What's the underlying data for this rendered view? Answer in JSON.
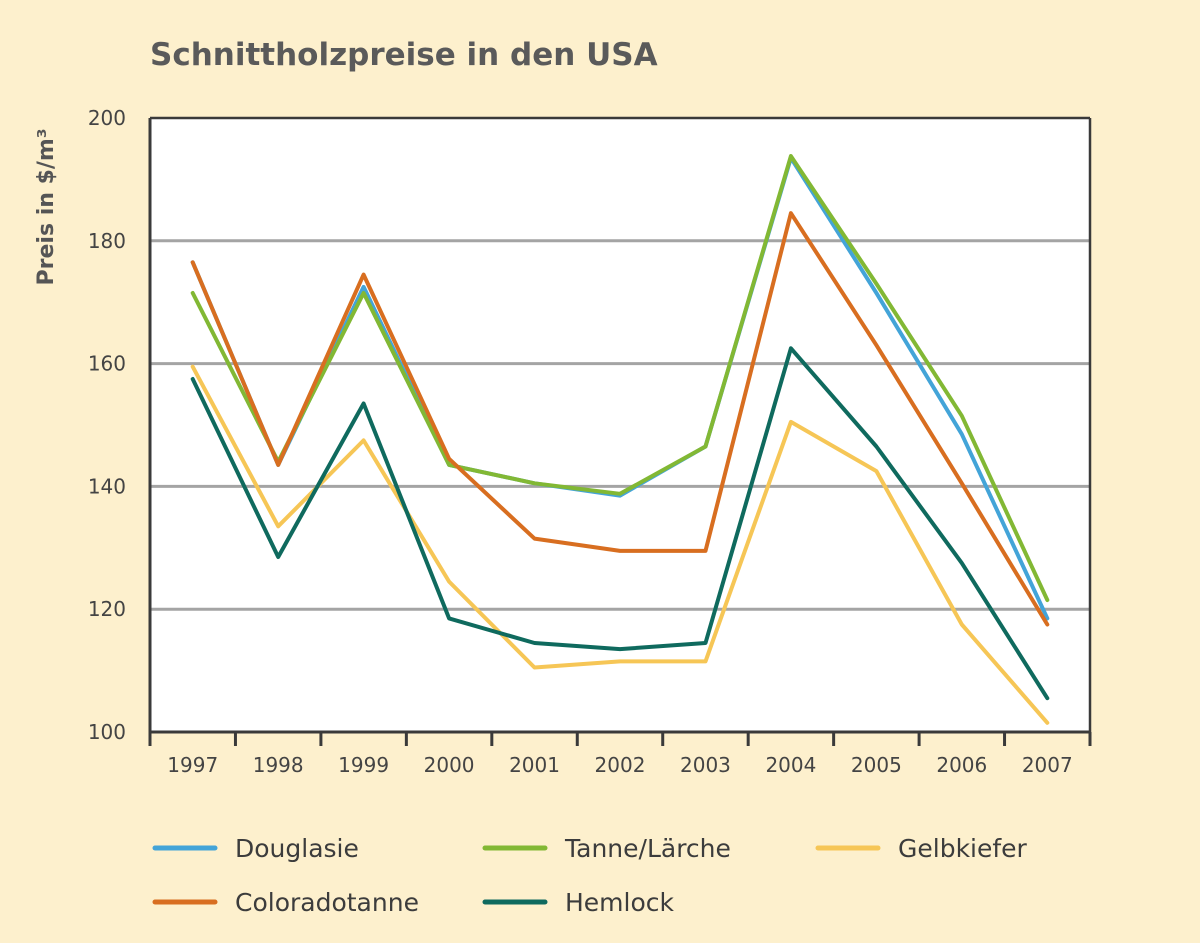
{
  "chart_data": {
    "type": "line",
    "title": "Schnittholzpreise in den USA",
    "xlabel": "",
    "ylabel": "Preis in $/m³",
    "ylim": [
      100,
      200
    ],
    "yticks": [
      100,
      120,
      140,
      160,
      180,
      200
    ],
    "grid": true,
    "legend_position": "bottom",
    "categories": [
      "1997",
      "1998",
      "1999",
      "2000",
      "2001",
      "2002",
      "2003",
      "2004",
      "2005",
      "2006",
      "2007"
    ],
    "series": [
      {
        "name": "Douglasie",
        "color": "#43a4d8",
        "values": [
          176.5,
          143.5,
          172.5,
          143.5,
          140.5,
          138.5,
          146.5,
          193.5,
          171.5,
          148.5,
          118.5
        ]
      },
      {
        "name": "Tanne/Lärche",
        "color": "#82b834",
        "values": [
          171.5,
          144.0,
          171.5,
          143.5,
          140.5,
          138.8,
          146.5,
          193.8,
          173.0,
          151.5,
          121.5
        ]
      },
      {
        "name": "Gelbkiefer",
        "color": "#f6c656",
        "values": [
          159.5,
          133.5,
          147.5,
          124.5,
          110.5,
          111.5,
          111.5,
          150.5,
          142.5,
          117.5,
          101.5
        ]
      },
      {
        "name": "Coloradotanne",
        "color": "#d86e20",
        "values": [
          176.5,
          143.5,
          174.5,
          144.5,
          131.5,
          129.5,
          129.5,
          184.5,
          163.0,
          140.5,
          117.5
        ]
      },
      {
        "name": "Hemlock",
        "color": "#0f6a5e",
        "values": [
          157.5,
          128.5,
          153.5,
          118.5,
          114.5,
          113.5,
          114.5,
          162.5,
          146.5,
          127.5,
          105.5
        ]
      }
    ]
  }
}
